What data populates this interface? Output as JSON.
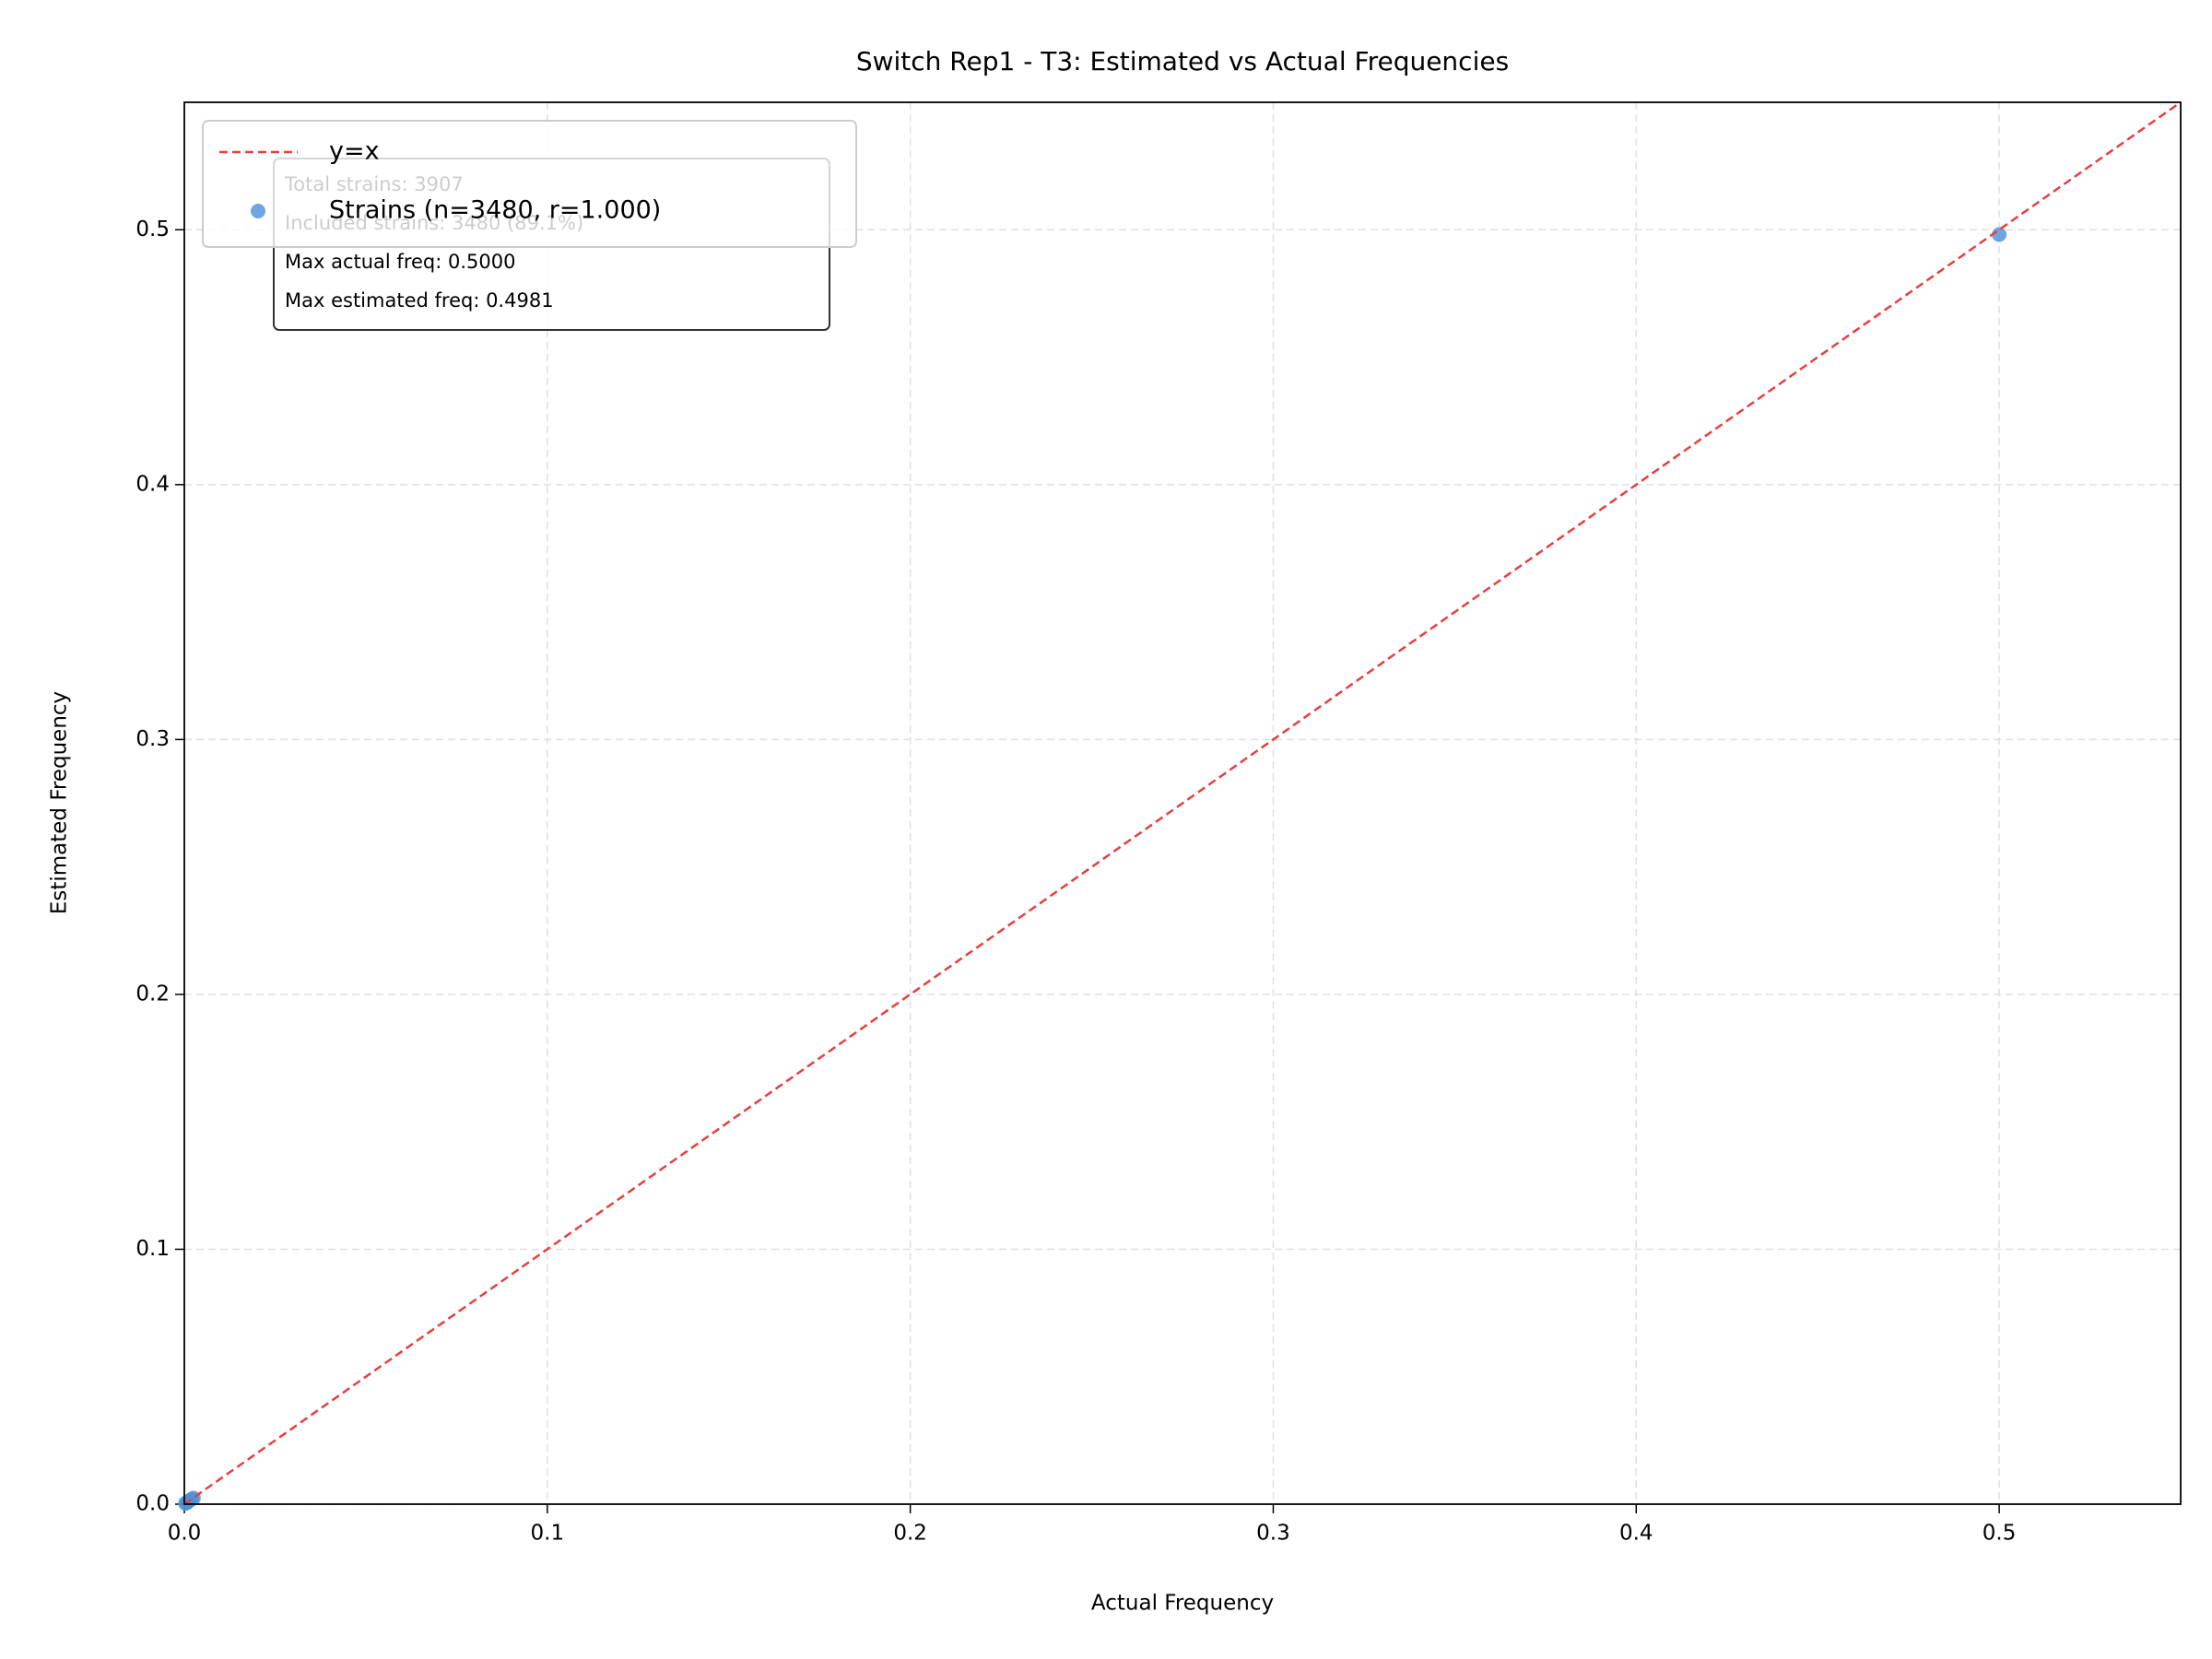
{
  "chart_data": {
    "type": "scatter",
    "title": "Switch Rep1 - T3: Estimated vs Actual Frequencies",
    "xlabel": "Actual Frequency",
    "ylabel": "Estimated Frequency",
    "xlim": [
      0,
      0.55
    ],
    "ylim": [
      0,
      0.55
    ],
    "xticks": [
      {
        "value": 0,
        "label": "0.0"
      },
      0.1,
      0.2,
      0.3,
      0.4,
      0.5
    ],
    "yticks": [
      {
        "value": 0,
        "label": "0.0"
      },
      0.1,
      0.2,
      0.3,
      0.4,
      0.5
    ],
    "grid": true,
    "legend": "upper left",
    "series": [
      {
        "name": "y=x",
        "type": "line",
        "color": "#e83e3e",
        "x": [
          0,
          0.55
        ],
        "y": [
          0,
          0.55
        ]
      },
      {
        "name": "Strains (n=3480, r=1.000)",
        "type": "scatter",
        "color": "#4a90d9",
        "x": [
          0.5,
          0.0003,
          0.0008,
          0.0012,
          0.002,
          0.0025
        ],
        "y": [
          0.4981,
          0.0003,
          0.0007,
          0.0012,
          0.0019,
          0.0024
        ]
      }
    ],
    "annotation": [
      "Total strains: 3907",
      "Included strains: 3480 (89.1%)",
      "Max actual freq: 0.5000",
      "Max estimated freq: 0.4981"
    ]
  }
}
